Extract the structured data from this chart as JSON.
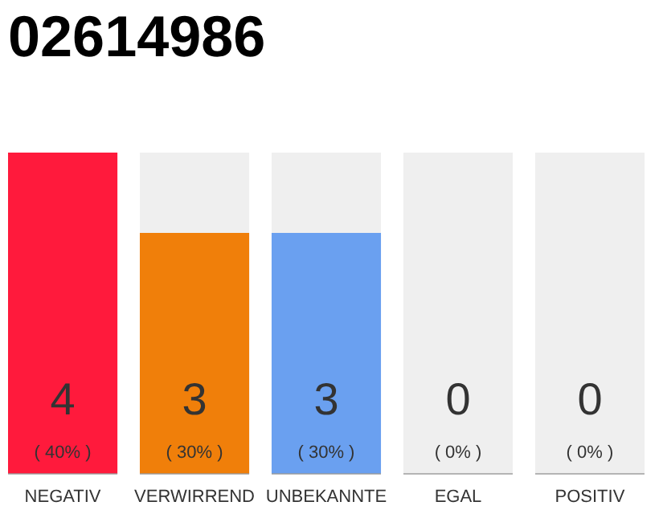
{
  "chart_data": {
    "type": "bar",
    "title": "02614986",
    "categories": [
      "NEGATIV",
      "VERWIRREND",
      "UNBEKANNTE",
      "EGAL",
      "POSITIV"
    ],
    "values": [
      4,
      3,
      3,
      0,
      0
    ],
    "colors": [
      "#ff1a3c",
      "#f07f0a",
      "#6aa0f0",
      "#9e9e9e",
      "#9e9e9e"
    ],
    "value_labels": [
      "4",
      "3",
      "3",
      "0",
      "0"
    ],
    "annotations": [
      "( 40% )",
      "( 30% )",
      "( 30% )",
      "( 0% )",
      "( 0% )"
    ],
    "ylim": [
      0,
      4
    ],
    "tick_labels": "x",
    "grid": false
  }
}
